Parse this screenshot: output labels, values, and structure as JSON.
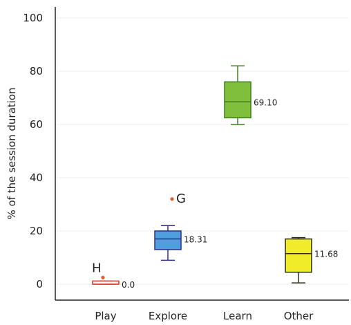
{
  "chart_data": {
    "type": "box",
    "ylabel": "% of the session duration",
    "ylim": [
      0,
      100
    ],
    "yticks": [
      0,
      20,
      40,
      60,
      80,
      100
    ],
    "grid": true,
    "categories": [
      "Play",
      "Explore",
      "Learn",
      "Other"
    ],
    "boxes": [
      {
        "category": "Play",
        "min": 0,
        "q1": 0,
        "median": 0,
        "q3": 1.2,
        "max": 1.2,
        "label": "0.0",
        "fill": "#ffffff",
        "stroke": "#d93a2a",
        "outliers": [
          {
            "value": 2.5,
            "label": "H"
          }
        ]
      },
      {
        "category": "Explore",
        "min": 9,
        "q1": 13,
        "median": 17,
        "q3": 20,
        "max": 22,
        "label": "18.31",
        "fill": "#4e9fdc",
        "stroke": "#2c2f8c",
        "outliers": [
          {
            "value": 32,
            "label": "G"
          }
        ]
      },
      {
        "category": "Learn",
        "min": 60,
        "q1": 62.5,
        "median": 68.5,
        "q3": 76,
        "max": 82,
        "label": "69.10",
        "fill": "#7fbf3b",
        "stroke": "#3e7d1f",
        "outliers": []
      },
      {
        "category": "Other",
        "min": 0.5,
        "q1": 4.5,
        "median": 11.5,
        "q3": 17,
        "max": 17.5,
        "label": "11.68",
        "fill": "#f1ec2a",
        "stroke": "#2d2d1a",
        "outliers": []
      }
    ],
    "outlier_color": "#e8592b"
  }
}
